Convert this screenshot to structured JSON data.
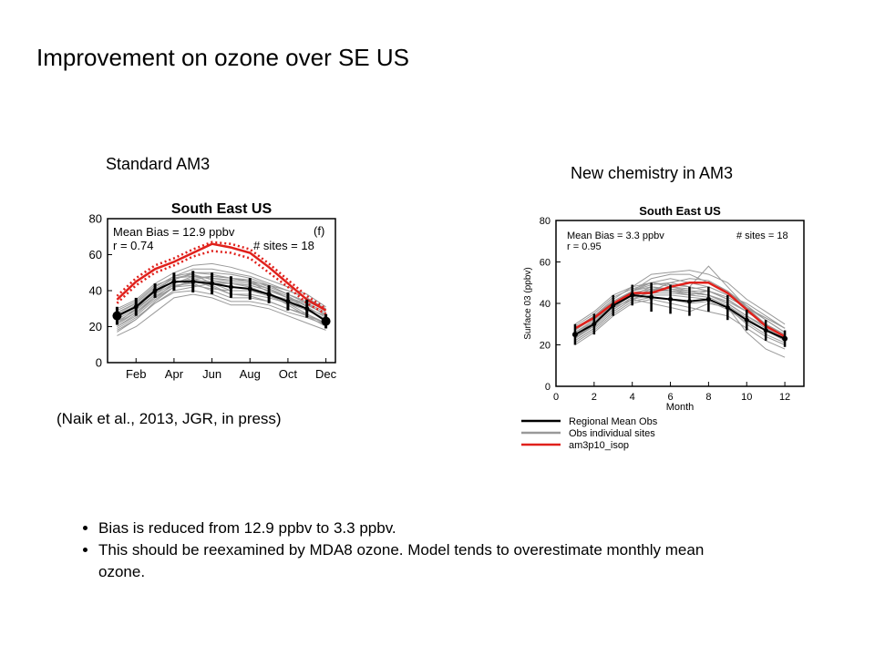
{
  "title": "Improvement on ozone over SE US",
  "labels": {
    "left": "Standard AM3",
    "right": "New chemistry in AM3",
    "reference": "(Naik et al., 2013, JGR, in press)"
  },
  "bullets": [
    "Bias is reduced from 12.9 ppbv to 3.3 ppbv.",
    "This should be reexamined by MDA8 ozone. Model tends to overestimate monthly mean ozone."
  ],
  "colors": {
    "obs": "#000000",
    "sites": "#999999",
    "model": "#e0201b"
  },
  "chart_data": [
    {
      "type": "line",
      "title": "South East US",
      "panel_label": "(f)",
      "annotations": [
        "Mean Bias = 12.9 ppbv",
        "r = 0.74",
        "# sites = 18"
      ],
      "xlabel": "",
      "ylabel": "",
      "x": [
        1,
        2,
        3,
        4,
        5,
        6,
        7,
        8,
        9,
        10,
        11,
        12
      ],
      "xticks": [
        2,
        4,
        6,
        8,
        10,
        12
      ],
      "xtick_labels": [
        "Feb",
        "Apr",
        "Jun",
        "Aug",
        "Oct",
        "Dec"
      ],
      "xlim": [
        0.5,
        12.5
      ],
      "ylim": [
        0,
        80
      ],
      "yticks": [
        0,
        20,
        40,
        60,
        80
      ],
      "series": [
        {
          "role": "obs",
          "values": [
            26,
            31,
            40,
            45,
            45,
            44,
            42,
            41,
            38,
            34,
            30,
            23
          ],
          "err": [
            5,
            5,
            4,
            5,
            6,
            6,
            6,
            6,
            5,
            5,
            5,
            4
          ]
        },
        {
          "role": "model",
          "values": [
            35,
            45,
            52,
            56,
            61,
            66,
            64,
            61,
            53,
            44,
            35,
            29
          ]
        },
        {
          "role": "model-dotted",
          "values": [
            37,
            47,
            54,
            58,
            63,
            67,
            66,
            63,
            55,
            46,
            37,
            30
          ]
        },
        {
          "role": "model-dotted",
          "values": [
            33,
            43,
            50,
            54,
            59,
            62,
            61,
            58,
            50,
            42,
            33,
            27
          ]
        }
      ],
      "sites": [
        [
          17,
          24,
          33,
          40,
          42,
          44,
          44,
          42,
          38,
          32,
          26,
          20
        ],
        [
          20,
          27,
          36,
          44,
          47,
          48,
          47,
          45,
          41,
          36,
          30,
          24
        ],
        [
          22,
          30,
          38,
          46,
          50,
          50,
          49,
          47,
          43,
          38,
          33,
          26
        ],
        [
          28,
          33,
          42,
          48,
          52,
          52,
          50,
          48,
          44,
          40,
          36,
          29
        ],
        [
          30,
          35,
          44,
          50,
          54,
          55,
          53,
          50,
          46,
          42,
          38,
          31
        ],
        [
          24,
          30,
          40,
          47,
          49,
          46,
          44,
          43,
          40,
          36,
          32,
          27
        ],
        [
          15,
          20,
          28,
          36,
          38,
          36,
          32,
          32,
          30,
          26,
          22,
          18
        ],
        [
          21,
          28,
          37,
          43,
          44,
          40,
          36,
          36,
          34,
          30,
          26,
          22
        ],
        [
          26,
          32,
          40,
          45,
          46,
          45,
          44,
          43,
          40,
          36,
          33,
          28
        ],
        [
          19,
          25,
          33,
          39,
          40,
          38,
          34,
          34,
          32,
          28,
          25,
          21
        ],
        [
          27,
          33,
          42,
          48,
          50,
          49,
          47,
          46,
          42,
          38,
          34,
          29
        ],
        [
          23,
          29,
          38,
          44,
          48,
          47,
          45,
          44,
          41,
          37,
          31,
          25
        ],
        [
          25,
          31,
          39,
          45,
          46,
          42,
          38,
          38,
          36,
          33,
          30,
          26
        ],
        [
          18,
          24,
          34,
          42,
          46,
          48,
          47,
          45,
          39,
          33,
          27,
          21
        ],
        [
          29,
          34,
          43,
          47,
          48,
          47,
          46,
          45,
          43,
          40,
          36,
          30
        ],
        [
          22,
          28,
          36,
          42,
          43,
          41,
          40,
          40,
          37,
          33,
          29,
          24
        ],
        [
          26,
          32,
          41,
          47,
          49,
          44,
          40,
          40,
          38,
          35,
          32,
          27
        ],
        [
          20,
          26,
          35,
          42,
          45,
          43,
          38,
          37,
          34,
          30,
          27,
          22
        ]
      ]
    },
    {
      "type": "line",
      "title": "South East US",
      "annotations": [
        "Mean Bias = 3.3 ppbv",
        "r = 0.95",
        "# sites = 18"
      ],
      "xlabel": "Month",
      "ylabel": "Surface 03 (ppbv)",
      "x": [
        1,
        2,
        3,
        4,
        5,
        6,
        7,
        8,
        9,
        10,
        11,
        12
      ],
      "xticks": [
        0,
        2,
        4,
        6,
        8,
        10,
        12
      ],
      "xtick_labels": [
        "0",
        "2",
        "4",
        "6",
        "8",
        "10",
        "12"
      ],
      "xlim": [
        0,
        13
      ],
      "ylim": [
        0,
        80
      ],
      "yticks": [
        0,
        20,
        40,
        60,
        80
      ],
      "series": [
        {
          "name": "Regional Mean Obs",
          "role": "obs",
          "values": [
            25,
            30,
            39,
            44,
            43,
            42,
            41,
            42,
            38,
            32,
            27,
            23
          ],
          "err": [
            5,
            5,
            5,
            5,
            7,
            7,
            7,
            6,
            6,
            5,
            5,
            4
          ]
        },
        {
          "name": "Obs individual sites",
          "role": "sites"
        },
        {
          "name": "am3p10_isop",
          "role": "model",
          "values": [
            28,
            33,
            40,
            45,
            45,
            48,
            50,
            50,
            45,
            37,
            29,
            24
          ]
        }
      ],
      "sites": [
        [
          22,
          28,
          36,
          42,
          46,
          48,
          46,
          44,
          40,
          34,
          28,
          22
        ],
        [
          26,
          32,
          40,
          46,
          52,
          54,
          54,
          50,
          46,
          38,
          32,
          26
        ],
        [
          30,
          36,
          44,
          48,
          54,
          55,
          56,
          54,
          50,
          42,
          36,
          30
        ],
        [
          20,
          26,
          34,
          40,
          42,
          40,
          38,
          36,
          34,
          28,
          22,
          18
        ],
        [
          24,
          30,
          38,
          44,
          46,
          50,
          48,
          46,
          42,
          36,
          30,
          24
        ],
        [
          28,
          34,
          42,
          48,
          50,
          52,
          50,
          48,
          44,
          40,
          34,
          28
        ],
        [
          23,
          30,
          38,
          42,
          40,
          38,
          36,
          40,
          38,
          30,
          24,
          20
        ],
        [
          26,
          31,
          39,
          44,
          48,
          46,
          44,
          46,
          42,
          36,
          30,
          25
        ],
        [
          21,
          27,
          35,
          41,
          43,
          42,
          40,
          41,
          37,
          31,
          25,
          21
        ],
        [
          29,
          35,
          43,
          47,
          50,
          48,
          47,
          48,
          44,
          38,
          33,
          28
        ],
        [
          25,
          31,
          40,
          46,
          50,
          49,
          48,
          58,
          48,
          38,
          30,
          24
        ],
        [
          24,
          29,
          37,
          43,
          47,
          47,
          45,
          44,
          40,
          34,
          29,
          24
        ],
        [
          27,
          33,
          41,
          46,
          49,
          50,
          52,
          51,
          46,
          39,
          32,
          26
        ],
        [
          22,
          28,
          36,
          42,
          44,
          44,
          43,
          42,
          38,
          26,
          18,
          14
        ],
        [
          26,
          32,
          40,
          45,
          47,
          46,
          45,
          44,
          41,
          36,
          30,
          25
        ],
        [
          23,
          29,
          37,
          43,
          45,
          45,
          44,
          43,
          39,
          33,
          27,
          22
        ],
        [
          28,
          34,
          41,
          46,
          48,
          47,
          46,
          46,
          43,
          38,
          33,
          28
        ],
        [
          24,
          30,
          38,
          44,
          46,
          46,
          45,
          44,
          40,
          34,
          28,
          23
        ]
      ]
    }
  ]
}
